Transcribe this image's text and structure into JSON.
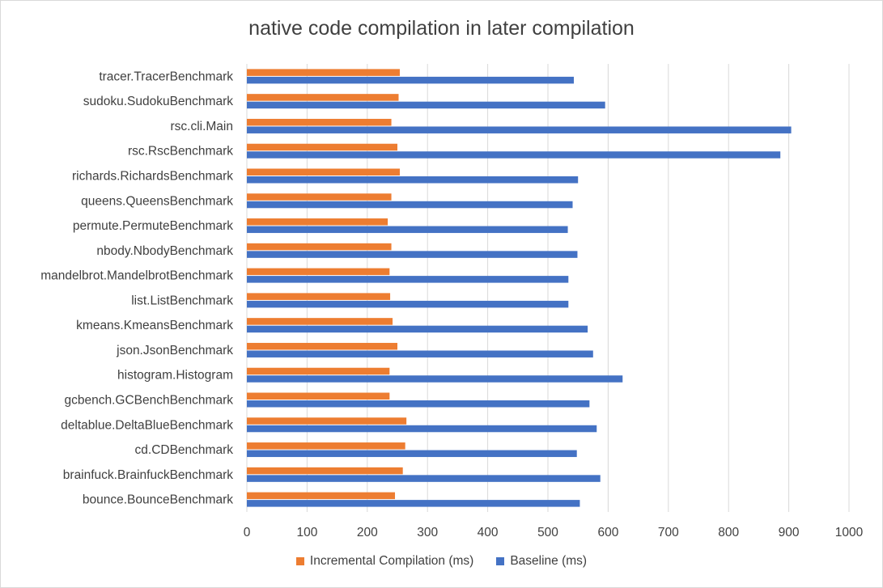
{
  "chart_data": {
    "type": "bar",
    "orientation": "horizontal",
    "title": "native code compilation in later compilation",
    "categories": [
      "tracer.TracerBenchmark",
      "sudoku.SudokuBenchmark",
      "rsc.cli.Main",
      "rsc.RscBenchmark",
      "richards.RichardsBenchmark",
      "queens.QueensBenchmark",
      "permute.PermuteBenchmark",
      "nbody.NbodyBenchmark",
      "mandelbrot.MandelbrotBenchmark",
      "list.ListBenchmark",
      "kmeans.KmeansBenchmark",
      "json.JsonBenchmark",
      "histogram.Histogram",
      "gcbench.GCBenchBenchmark",
      "deltablue.DeltaBlueBenchmark",
      "cd.CDBenchmark",
      "brainfuck.BrainfuckBenchmark",
      "bounce.BounceBenchmark"
    ],
    "series": [
      {
        "name": "Incremental Compilation (ms)",
        "color": "#ed7d31",
        "values": [
          254,
          252,
          240,
          250,
          254,
          240,
          234,
          240,
          237,
          238,
          242,
          250,
          237,
          237,
          265,
          263,
          259,
          246
        ]
      },
      {
        "name": "Baseline (ms)",
        "color": "#4472c4",
        "values": [
          543,
          595,
          904,
          886,
          550,
          541,
          533,
          549,
          534,
          534,
          566,
          575,
          624,
          569,
          581,
          548,
          587,
          553
        ]
      }
    ],
    "xlim": [
      0,
      1000
    ],
    "xticks": [
      0,
      100,
      200,
      300,
      400,
      500,
      600,
      700,
      800,
      900,
      1000
    ],
    "grid": true,
    "legend_position": "bottom"
  }
}
